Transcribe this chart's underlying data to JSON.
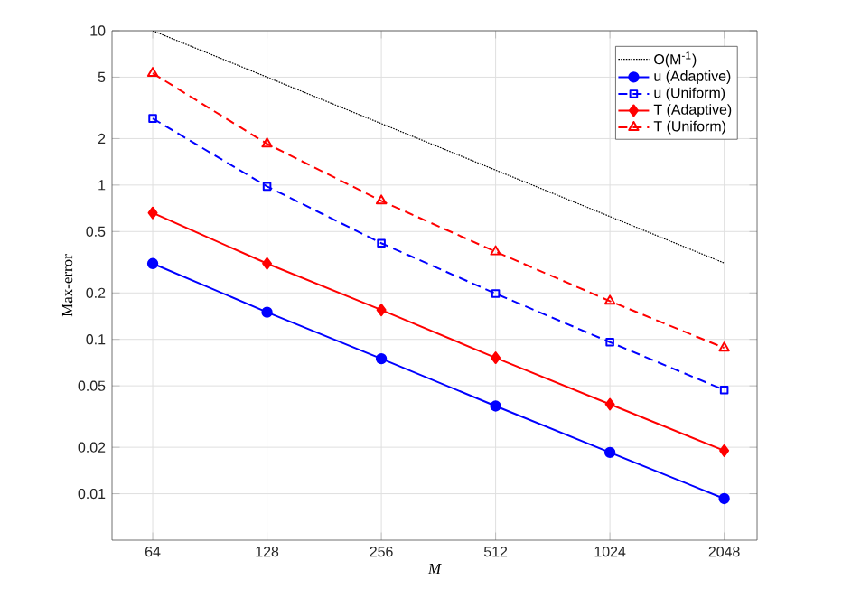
{
  "chart_data": {
    "type": "line",
    "xlabel": "M",
    "ylabel": "Max-error",
    "x": [
      64,
      128,
      256,
      512,
      1024,
      2048
    ],
    "series": [
      {
        "name": "O(M$^{-1}$)",
        "color": "#000000",
        "line_style": "dotted",
        "marker": "none",
        "values": [
          10,
          5,
          2.5,
          1.25,
          0.625,
          0.3125
        ]
      },
      {
        "name": "u (Adaptive)",
        "color": "#0000ff",
        "line_style": "solid",
        "marker": "circle",
        "values": [
          0.31,
          0.15,
          0.075,
          0.037,
          0.0185,
          0.0093
        ]
      },
      {
        "name": "u (Uniform)",
        "color": "#0000ff",
        "line_style": "dashed",
        "marker": "square",
        "values": [
          2.7,
          0.98,
          0.42,
          0.198,
          0.096,
          0.047
        ]
      },
      {
        "name": "T (Adaptive)",
        "color": "#ff0000",
        "line_style": "solid",
        "marker": "diamond",
        "values": [
          0.66,
          0.31,
          0.155,
          0.076,
          0.038,
          0.019
        ]
      },
      {
        "name": "T (Uniform)",
        "color": "#ff0000",
        "line_style": "dashed",
        "marker": "triangle",
        "values": [
          5.3,
          1.85,
          0.79,
          0.37,
          0.177,
          0.088
        ]
      }
    ],
    "log": "xy",
    "xlim": [
      50,
      2500
    ],
    "ylim": [
      0.005,
      10
    ],
    "xticks": [
      64,
      128,
      256,
      512,
      1024,
      2048
    ],
    "yticks": [
      0.01,
      0.02,
      0.05,
      0.1,
      0.2,
      0.5,
      1,
      2,
      5,
      10
    ],
    "grid": true,
    "legend": "top right"
  }
}
